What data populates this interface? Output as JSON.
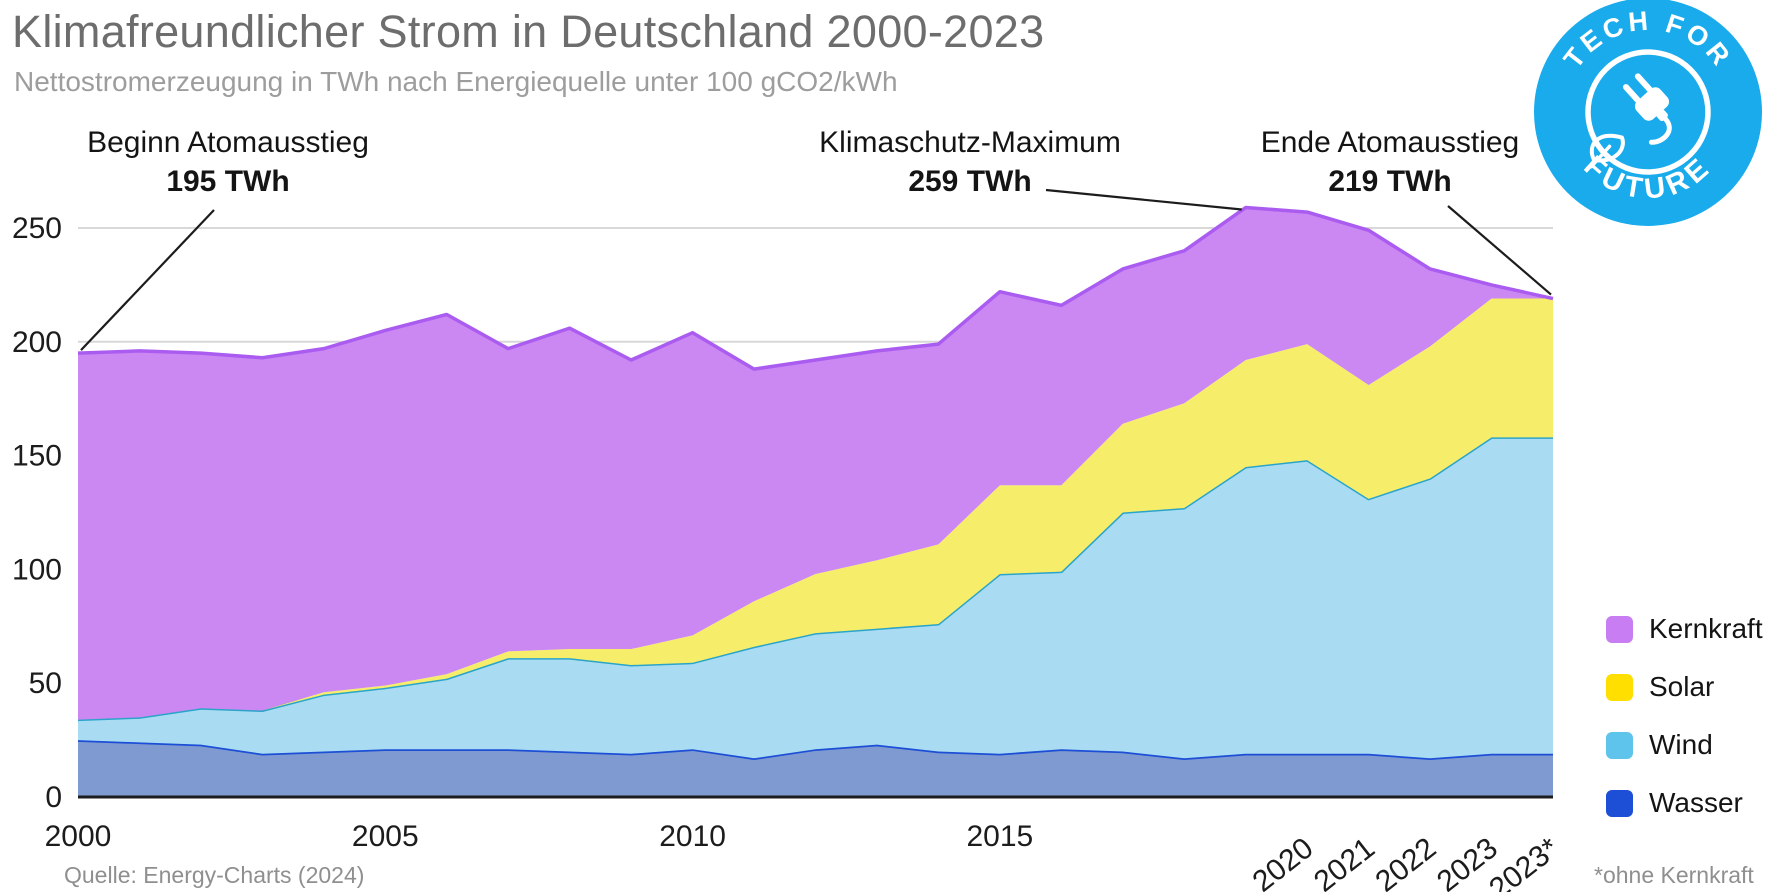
{
  "header": {
    "title": "Klimafreundlicher Strom in Deutschland 2000-2023",
    "subtitle": "Nettostromerzeugung in TWh nach Energiequelle unter 100 gCO2/kWh"
  },
  "badge": {
    "top_text": "TECH FOR",
    "bottom_text": "FUTURE",
    "color": "#1aabec"
  },
  "annotations": [
    {
      "label": "Beginn Atomausstieg",
      "value": "195 TWh",
      "target_year": "2000",
      "target_value": 195
    },
    {
      "label": "Klimaschutz-Maximum",
      "value": "259 TWh",
      "target_year": "2019",
      "target_value": 259
    },
    {
      "label": "Ende Atomausstieg",
      "value": "219 TWh",
      "target_year": "2023*",
      "target_value": 219
    }
  ],
  "chart_data": {
    "type": "area",
    "stacked": true,
    "title": "Klimafreundlicher Strom in Deutschland 2000-2023",
    "ylabel": "TWh",
    "ylim": [
      0,
      250
    ],
    "yticks": [
      0,
      50,
      100,
      150,
      200,
      250
    ],
    "grid": true,
    "legend_position": "right",
    "x": [
      "2000",
      "2001",
      "2002",
      "2003",
      "2004",
      "2005",
      "2006",
      "2007",
      "2008",
      "2009",
      "2010",
      "2011",
      "2012",
      "2013",
      "2014",
      "2015",
      "2016",
      "2017",
      "2018",
      "2019",
      "2020",
      "2021",
      "2022",
      "2023",
      "2023*"
    ],
    "xticks_upright": [
      "2000",
      "2005",
      "2010",
      "2015"
    ],
    "xticks_rotated": [
      "2020",
      "2021",
      "2022",
      "2023",
      "2023*"
    ],
    "series": [
      {
        "name": "Wasser",
        "color": "#1d4fd6",
        "fill": "#7f9ad0",
        "legend_color": "#1d4fd6",
        "stroke_width": 3.5,
        "values": [
          25,
          24,
          23,
          19,
          20,
          21,
          21,
          21,
          20,
          19,
          21,
          17,
          21,
          23,
          20,
          19,
          21,
          20,
          17,
          19,
          19,
          19,
          17,
          19,
          19
        ]
      },
      {
        "name": "Wind",
        "color": "#2ba4c9",
        "fill": "#a9dcf2",
        "legend_color": "#5fc4ec",
        "stroke_width": 3,
        "values": [
          9,
          11,
          16,
          19,
          25,
          27,
          31,
          40,
          41,
          39,
          38,
          49,
          51,
          51,
          56,
          79,
          78,
          105,
          110,
          126,
          129,
          112,
          123,
          139,
          139
        ]
      },
      {
        "name": "Solar",
        "color": "#f6e800",
        "fill": "#f6ee6a",
        "legend_color": "#ffdf00",
        "stroke_width": 0,
        "values": [
          0,
          0,
          0,
          0,
          1,
          1,
          2,
          3,
          4,
          7,
          12,
          20,
          26,
          30,
          35,
          39,
          38,
          39,
          46,
          47,
          51,
          50,
          58,
          61,
          61
        ]
      },
      {
        "name": "Kernkraft",
        "color": "#ab5cf0",
        "fill": "#cb87f2",
        "legend_color": "#c87ef2",
        "stroke_width": 3.5,
        "values": [
          161,
          161,
          156,
          155,
          151,
          156,
          158,
          133,
          141,
          127,
          133,
          102,
          94,
          92,
          88,
          85,
          79,
          68,
          67,
          67,
          58,
          68,
          34,
          6,
          0
        ]
      }
    ],
    "legend_order": [
      "Kernkraft",
      "Solar",
      "Wind",
      "Wasser"
    ],
    "totals_note": "2000 total 195 TWh, maximum 259 TWh (2019), 2023* without nuclear 219 TWh"
  },
  "footer": {
    "source": "Quelle: Energy-Charts (2024)",
    "note": "*ohne Kernkraft"
  }
}
